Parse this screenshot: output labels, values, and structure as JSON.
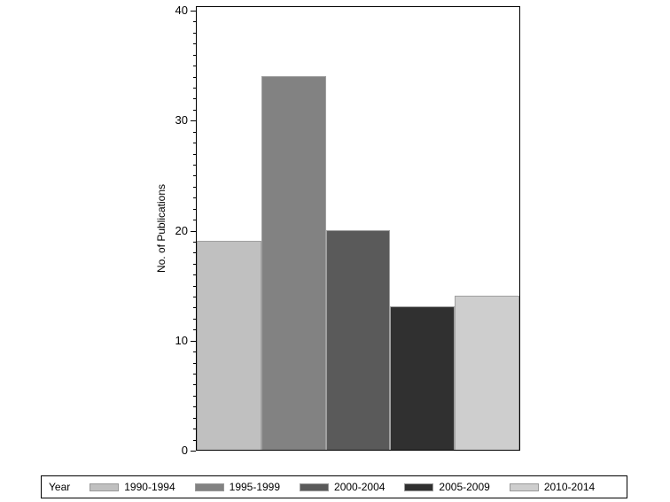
{
  "chart_data": {
    "type": "bar",
    "title": "",
    "xlabel": "",
    "ylabel": "No. of Publications",
    "ylim": [
      0,
      40
    ],
    "yticks": [
      0,
      10,
      20,
      30,
      40
    ],
    "grid": false,
    "legend_position": "bottom",
    "legend_title": "Year",
    "categories": [
      "1990-1994",
      "1995-1999",
      "2000-2004",
      "2005-2009",
      "2010-2014"
    ],
    "values": [
      19,
      34,
      20,
      13,
      14
    ],
    "colors": [
      "#c0c0c0",
      "#828282",
      "#5a5a5a",
      "#303030",
      "#cecece"
    ]
  }
}
